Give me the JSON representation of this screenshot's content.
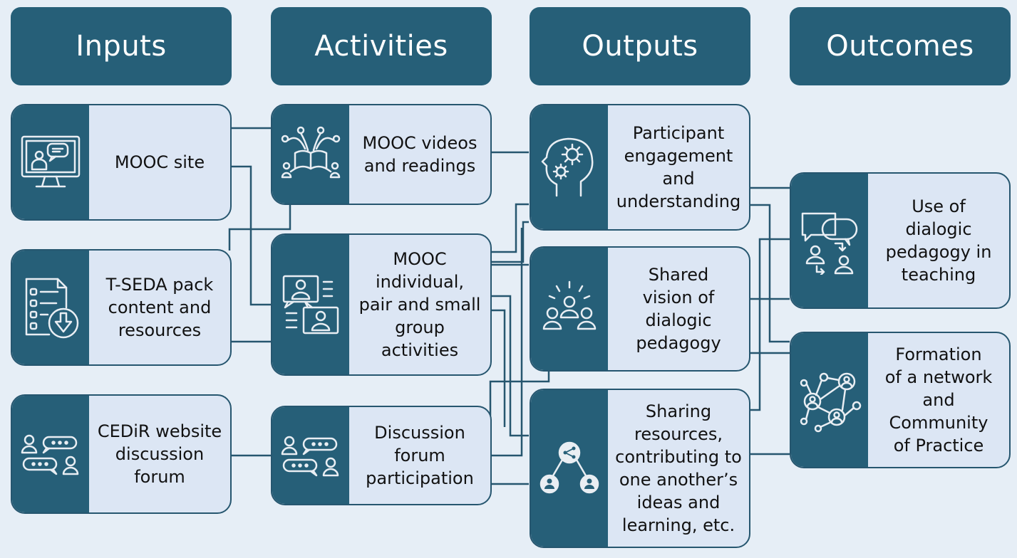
{
  "headers": {
    "inputs": "Inputs",
    "activities": "Activities",
    "outputs": "Outputs",
    "outcomes": "Outcomes"
  },
  "inputs": {
    "mooc_site": "MOOC site",
    "tseda_pack": "T-SEDA pack\ncontent and\nresources",
    "cedir_forum": "CEDiR website\ndiscussion\nforum"
  },
  "activities": {
    "videos_readings": "MOOC videos\nand readings",
    "group_activities": "MOOC\nindividual,\npair and small\ngroup\nactivities",
    "forum_participation": "Discussion\nforum\nparticipation"
  },
  "outputs": {
    "engagement": "Participant\nengagement\nand\nunderstanding",
    "shared_vision": "Shared\nvision of\ndialogic\npedagogy",
    "sharing_resources": "Sharing\nresources,\ncontributing to\none another’s\nideas and\nlearning, etc."
  },
  "outcomes": {
    "dialogic_teaching": "Use of\ndialogic\npedagogy in\nteaching",
    "network": "Formation\nof a network\nand\nCommunity\nof Practice"
  },
  "icons": {
    "mooc_site": "monitor-presenter-icon",
    "tseda_pack": "checklist-download-icon",
    "cedir_forum": "discussion-people-icon",
    "videos_readings": "open-book-people-icon",
    "group_activities": "video-chat-icon",
    "forum_participation": "discussion-people-icon",
    "engagement": "head-gears-icon",
    "shared_vision": "group-idea-icon",
    "sharing_resources": "share-network-icon",
    "dialogic_teaching": "dialogue-exchange-icon",
    "network": "community-network-icon"
  },
  "colors": {
    "header_bg": "#265f78",
    "card_bg": "#dce6f4",
    "card_border": "#26566f",
    "icon_stroke": "#e9eef3",
    "connector": "#26566f",
    "page_bg": "#e6eef6"
  }
}
